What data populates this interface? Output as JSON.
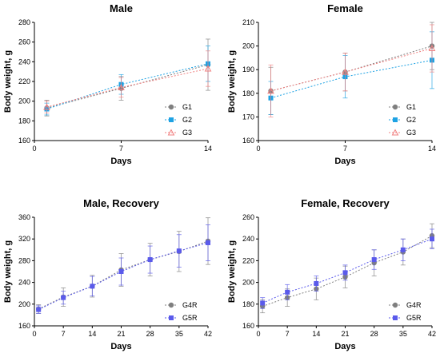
{
  "chart_data": [
    {
      "type": "line",
      "title": "Male",
      "xlabel": "Days",
      "ylabel": "Body weight, g",
      "xlim": [
        0,
        14
      ],
      "ylim": [
        160,
        280
      ],
      "xticks": [
        0,
        7,
        14
      ],
      "yticks": [
        160,
        180,
        200,
        220,
        240,
        260,
        280
      ],
      "legend_position": "bottom-right",
      "series": [
        {
          "name": "G1",
          "color": "#7f7f7f",
          "marker": "circle",
          "x": [
            1,
            7,
            14
          ],
          "y": [
            193,
            213,
            237
          ],
          "err": [
            8,
            12,
            26
          ]
        },
        {
          "name": "G2",
          "color": "#1ea2e3",
          "marker": "square",
          "x": [
            1,
            7,
            14
          ],
          "y": [
            192,
            217,
            238
          ],
          "err": [
            6,
            10,
            18
          ]
        },
        {
          "name": "G3",
          "color": "#f08080",
          "marker": "triangle",
          "x": [
            1,
            7,
            14
          ],
          "y": [
            194,
            214,
            233
          ],
          "err": [
            6,
            10,
            18
          ]
        }
      ]
    },
    {
      "type": "line",
      "title": "Female",
      "xlabel": "Days",
      "ylabel": "Body weight, g",
      "xlim": [
        0,
        14
      ],
      "ylim": [
        160,
        210
      ],
      "xticks": [
        0,
        7,
        14
      ],
      "yticks": [
        160,
        170,
        180,
        190,
        200,
        210
      ],
      "legend_position": "bottom-right",
      "series": [
        {
          "name": "G1",
          "color": "#7f7f7f",
          "marker": "circle",
          "x": [
            1,
            7,
            14
          ],
          "y": [
            181,
            189,
            200
          ],
          "err": [
            10,
            8,
            10
          ]
        },
        {
          "name": "G2",
          "color": "#1ea2e3",
          "marker": "square",
          "x": [
            1,
            7,
            14
          ],
          "y": [
            178,
            187,
            194
          ],
          "err": [
            7,
            9,
            12
          ]
        },
        {
          "name": "G3",
          "color": "#f08080",
          "marker": "triangle",
          "x": [
            1,
            7,
            14
          ],
          "y": [
            181,
            189,
            199
          ],
          "err": [
            11,
            8,
            10
          ]
        }
      ]
    },
    {
      "type": "line",
      "title": "Male, Recovery",
      "xlabel": "Days",
      "ylabel": "Body weight, g",
      "xlim": [
        0,
        42
      ],
      "ylim": [
        160,
        360
      ],
      "xticks": [
        0,
        7,
        14,
        21,
        28,
        35,
        42
      ],
      "yticks": [
        160,
        200,
        240,
        280,
        320,
        360
      ],
      "legend_position": "bottom-right",
      "series": [
        {
          "name": "G4R",
          "color": "#7f7f7f",
          "marker": "circle",
          "x": [
            1,
            7,
            14,
            21,
            28,
            35,
            42
          ],
          "y": [
            191,
            213,
            233,
            263,
            282,
            297,
            316
          ],
          "err": [
            8,
            17,
            20,
            30,
            30,
            37,
            43
          ]
        },
        {
          "name": "G5R",
          "color": "#5a5aeb",
          "marker": "square",
          "x": [
            1,
            7,
            14,
            21,
            28,
            35,
            42
          ],
          "y": [
            190,
            212,
            233,
            260,
            282,
            298,
            313
          ],
          "err": [
            7,
            12,
            18,
            25,
            25,
            30,
            33
          ]
        }
      ]
    },
    {
      "type": "line",
      "title": "Female, Recovery",
      "xlabel": "Days",
      "ylabel": "Body weight, g",
      "xlim": [
        0,
        42
      ],
      "ylim": [
        160,
        260
      ],
      "xticks": [
        0,
        7,
        14,
        21,
        28,
        35,
        42
      ],
      "yticks": [
        160,
        180,
        200,
        220,
        240,
        260
      ],
      "legend_position": "bottom-right",
      "series": [
        {
          "name": "G4R",
          "color": "#7f7f7f",
          "marker": "circle",
          "x": [
            1,
            7,
            14,
            21,
            28,
            35,
            42
          ],
          "y": [
            178,
            186,
            194,
            205,
            218,
            228,
            243
          ],
          "err": [
            6,
            8,
            10,
            10,
            12,
            12,
            11
          ]
        },
        {
          "name": "G5R",
          "color": "#5a5aeb",
          "marker": "square",
          "x": [
            1,
            7,
            14,
            21,
            28,
            35,
            42
          ],
          "y": [
            181,
            191,
            199,
            209,
            221,
            230,
            240
          ],
          "err": [
            5,
            7,
            7,
            7,
            9,
            10,
            9
          ]
        }
      ]
    }
  ]
}
